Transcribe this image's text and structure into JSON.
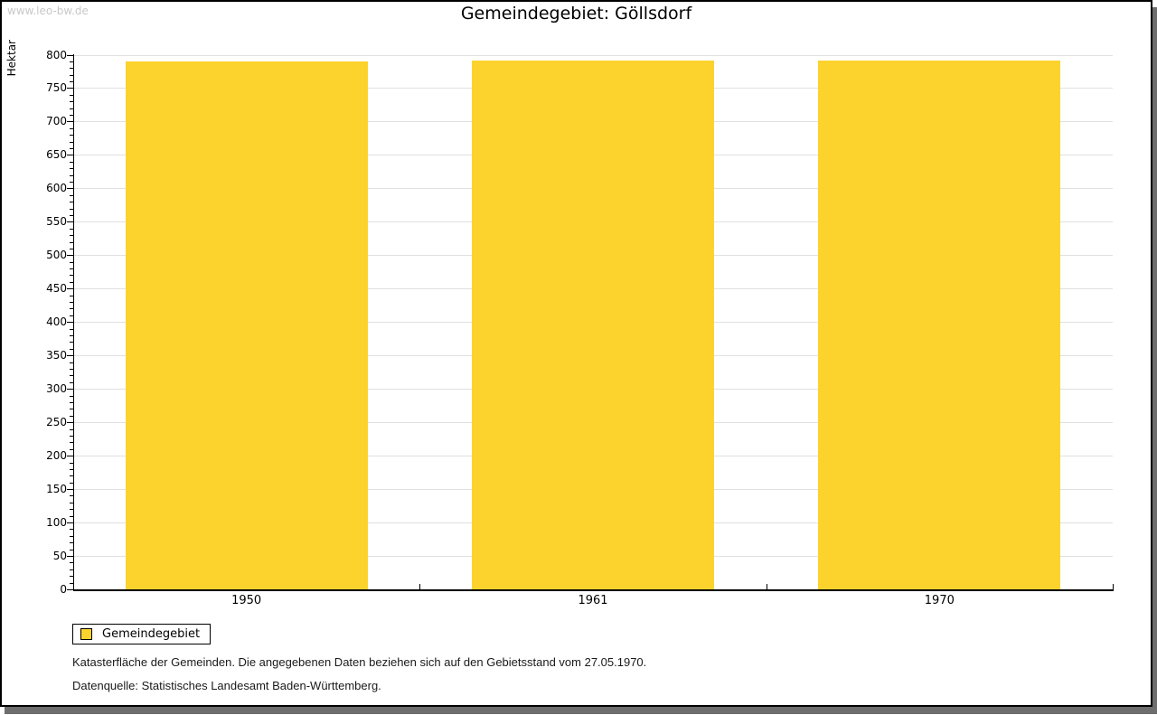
{
  "watermark": "www.leo-bw.de",
  "title": "Gemeindegebiet: Göllsdorf",
  "chart_data": {
    "type": "bar",
    "title": "Gemeindegebiet: Göllsdorf",
    "categories": [
      "1950",
      "1961",
      "1970"
    ],
    "series": [
      {
        "name": "Gemeindegebiet",
        "values": [
          790,
          791,
          791
        ]
      }
    ],
    "xlabel": "",
    "ylabel": "Hektar",
    "ylim": [
      0,
      800
    ],
    "ytick_major_step": 50,
    "ytick_minor_step": 10,
    "grid": true,
    "bar_color": "#fcd32d",
    "legend_position": "bottom-left"
  },
  "legend": {
    "items": [
      {
        "label": "Gemeindegebiet",
        "color": "#fcd32d"
      }
    ]
  },
  "footer": {
    "line1": "Katasterfläche der Gemeinden. Die angegebenen Daten beziehen sich auf den Gebietsstand vom 27.05.1970.",
    "line2": "Datenquelle: Statistisches Landesamt Baden-Württemberg."
  },
  "colors": {
    "bar": "#fcd32d",
    "grid": "#e0e0e0",
    "axis": "#000000",
    "watermark": "#c8c8c8",
    "frame_shadow": "#6e6e6e",
    "background": "#ffffff"
  }
}
